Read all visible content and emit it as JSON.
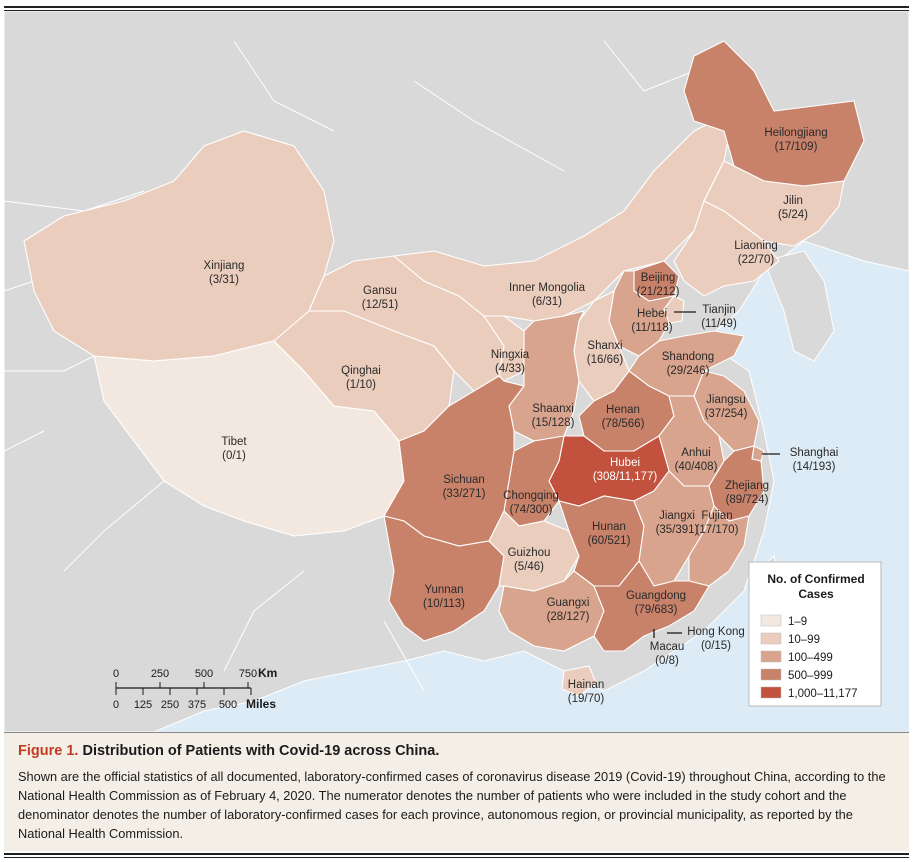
{
  "colors": {
    "water": "#dcebf5",
    "land_other": "#d9d9d9",
    "border_other": "#ffffff",
    "c1": "#f3e8e0",
    "c2": "#ebcdbd",
    "c3": "#d9a48e",
    "c4": "#c9826a",
    "c5": "#c2513d"
  },
  "legend": {
    "title_line1": "No. of Confirmed",
    "title_line2": "Cases",
    "items": [
      {
        "label": "1–9",
        "color": "#f3e8e0"
      },
      {
        "label": "10–99",
        "color": "#ebcdbd"
      },
      {
        "label": "100–499",
        "color": "#d9a48e"
      },
      {
        "label": "500–999",
        "color": "#c9826a"
      },
      {
        "label": "1,000–11,177",
        "color": "#c2513d"
      }
    ]
  },
  "scale_bar": {
    "km_ticks": [
      "0",
      "250",
      "500",
      "750"
    ],
    "km_unit": "Km",
    "mile_ticks": [
      "0",
      "125",
      "250",
      "375",
      "500"
    ],
    "mile_unit": "Miles"
  },
  "provinces": [
    {
      "name": "Xinjiang",
      "value": "(3/31)"
    },
    {
      "name": "Tibet",
      "value": "(0/1)"
    },
    {
      "name": "Qinghai",
      "value": "(1/10)"
    },
    {
      "name": "Gansu",
      "value": "(12/51)"
    },
    {
      "name": "Inner Mongolia",
      "value": "(6/31)"
    },
    {
      "name": "Ningxia",
      "value": "(4/33)"
    },
    {
      "name": "Shanxi",
      "value": "(16/66)"
    },
    {
      "name": "Shaanxi",
      "value": "(15/128)"
    },
    {
      "name": "Sichuan",
      "value": "(33/271)"
    },
    {
      "name": "Yunnan",
      "value": "(10/113)"
    },
    {
      "name": "Chongqing",
      "value": "(74/300)"
    },
    {
      "name": "Guizhou",
      "value": "(5/46)"
    },
    {
      "name": "Guangxi",
      "value": "(28/127)"
    },
    {
      "name": "Hubei",
      "value": "(308/11,177)"
    },
    {
      "name": "Henan",
      "value": "(78/566)"
    },
    {
      "name": "Hunan",
      "value": "(60/521)"
    },
    {
      "name": "Jiangxi",
      "value": "(35/391)"
    },
    {
      "name": "Guangdong",
      "value": "(79/683)"
    },
    {
      "name": "Fujian",
      "value": "(17/170)"
    },
    {
      "name": "Zhejiang",
      "value": "(89/724)"
    },
    {
      "name": "Anhui",
      "value": "(40/408)"
    },
    {
      "name": "Jiangsu",
      "value": "(37/254)"
    },
    {
      "name": "Shandong",
      "value": "(29/246)"
    },
    {
      "name": "Hebei",
      "value": "(11/118)"
    },
    {
      "name": "Beijing",
      "value": "(21/212)"
    },
    {
      "name": "Tianjin",
      "value": "(11/49)"
    },
    {
      "name": "Liaoning",
      "value": "(22/70)"
    },
    {
      "name": "Jilin",
      "value": "(5/24)"
    },
    {
      "name": "Heilongjiang",
      "value": "(17/109)"
    },
    {
      "name": "Shanghai",
      "value": "(14/193)"
    },
    {
      "name": "Hong Kong",
      "value": "(0/15)"
    },
    {
      "name": "Macau",
      "value": "(0/8)"
    },
    {
      "name": "Hainan",
      "value": "(19/70)"
    }
  ],
  "caption": {
    "figure_label": "Figure 1.",
    "title": "Distribution of Patients with Covid-19 across China.",
    "body": "Shown are the official statistics of all documented, laboratory-confirmed cases of coronavirus disease 2019 (Covid-19) throughout China, according to the National Health Commission as of February 4, 2020. The numerator denotes the number of patients who were included in the study cohort and the denominator denotes the number of laboratory-confirmed cases for each province, autonomous region, or provincial municipality, as reported by the National Health Commission."
  }
}
